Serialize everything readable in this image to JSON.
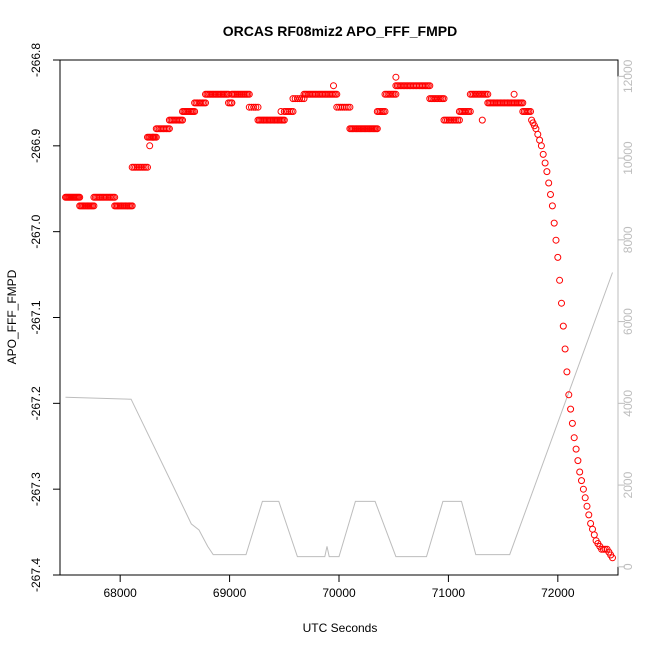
{
  "chart_data": {
    "type": "scatter",
    "title": "ORCAS RF08miz2 APO_FFF_FMPD",
    "xlabel": "UTC Seconds",
    "ylabel": "APO_FFF_FMPD",
    "xlim": [
      67450,
      72550
    ],
    "ylim": [
      -267.4,
      -266.8
    ],
    "y2lim": [
      -200,
      12400
    ],
    "x_ticks": [
      68000,
      69000,
      70000,
      71000,
      72000
    ],
    "x_tick_labels": [
      "68000",
      "69000",
      "70000",
      "71000",
      "72000"
    ],
    "y_ticks": [
      -267.4,
      -267.3,
      -267.2,
      -267.1,
      -267.0,
      -266.9,
      -266.8
    ],
    "y_tick_labels": [
      "-267.4",
      "-267.3",
      "-267.2",
      "-267.1",
      "-267.0",
      "-266.9",
      "-266.8"
    ],
    "y2_ticks": [
      0,
      2000,
      4000,
      6000,
      8000,
      10000,
      12000
    ],
    "y2_tick_labels": [
      "0",
      "2000",
      "4000",
      "6000",
      "8000",
      "10000",
      "12000"
    ],
    "grid": false,
    "colors": {
      "points": "#ff0000",
      "altitude": "#bdbdbd",
      "axis": "#000000",
      "right_axis": "#bdbdbd"
    },
    "series": [
      {
        "role": "points",
        "axis": "left",
        "marker": "open-circle",
        "segments": [
          [
            67500,
            67630,
            -266.96,
            14
          ],
          [
            67630,
            67760,
            -266.97,
            12
          ],
          [
            67760,
            67950,
            -266.96,
            16
          ],
          [
            67950,
            68110,
            -266.97,
            14
          ],
          [
            68110,
            68250,
            -266.925,
            10
          ],
          [
            68250,
            68330,
            -266.89,
            8
          ],
          [
            68330,
            68450,
            -266.88,
            10
          ],
          [
            68450,
            68570,
            -266.87,
            10
          ],
          [
            68570,
            68680,
            -266.86,
            10
          ],
          [
            68680,
            68780,
            -266.85,
            8
          ],
          [
            68780,
            68990,
            -266.84,
            18
          ],
          [
            68990,
            69020,
            -266.85,
            3
          ],
          [
            69020,
            69180,
            -266.84,
            14
          ],
          [
            69180,
            69260,
            -266.855,
            5
          ],
          [
            69260,
            69500,
            -266.87,
            20
          ],
          [
            69500,
            69580,
            -266.86,
            6
          ],
          [
            69580,
            69680,
            -266.845,
            6
          ],
          [
            69680,
            69980,
            -266.84,
            24
          ],
          [
            69980,
            70100,
            -266.855,
            8
          ],
          [
            70100,
            70350,
            -266.88,
            22
          ],
          [
            70350,
            70420,
            -266.86,
            6
          ],
          [
            70420,
            70520,
            -266.84,
            8
          ],
          [
            70520,
            70830,
            -266.83,
            24
          ],
          [
            70830,
            70960,
            -266.845,
            10
          ],
          [
            70960,
            71100,
            -266.87,
            10
          ],
          [
            71100,
            71200,
            -266.86,
            8
          ],
          [
            71200,
            71360,
            -266.84,
            12
          ],
          [
            71360,
            71680,
            -266.85,
            26
          ],
          [
            71680,
            71750,
            -266.86,
            6
          ]
        ],
        "special": [
          [
            68270,
            -266.9
          ],
          [
            68300,
            -266.89
          ],
          [
            69020,
            -266.85
          ],
          [
            69470,
            -266.86
          ],
          [
            69950,
            -266.83
          ],
          [
            70520,
            -266.82
          ],
          [
            71310,
            -266.87
          ],
          [
            71600,
            -266.84
          ]
        ],
        "tail": [
          [
            71760,
            -266.87
          ],
          [
            71800,
            -266.88
          ],
          [
            71850,
            -266.9
          ],
          [
            71900,
            -266.93
          ],
          [
            71950,
            -266.97
          ],
          [
            72000,
            -267.03
          ],
          [
            72050,
            -267.11
          ],
          [
            72100,
            -267.19
          ],
          [
            72150,
            -267.24
          ],
          [
            72200,
            -267.28
          ],
          [
            72250,
            -267.31
          ],
          [
            72300,
            -267.34
          ],
          [
            72350,
            -267.36
          ],
          [
            72400,
            -267.37
          ],
          [
            72450,
            -267.37
          ],
          [
            72500,
            -267.38
          ]
        ]
      },
      {
        "role": "altitude",
        "axis": "right",
        "x": [
          67500,
          68100,
          68480,
          68650,
          68720,
          68800,
          68850,
          69150,
          69300,
          69450,
          69620,
          69870,
          69890,
          69910,
          70000,
          70150,
          70330,
          70520,
          70800,
          70950,
          71120,
          71250,
          71560,
          72500
        ],
        "values": [
          4150,
          4100,
          2000,
          1050,
          900,
          500,
          300,
          300,
          1600,
          1600,
          250,
          250,
          500,
          250,
          250,
          1600,
          1600,
          250,
          250,
          1600,
          1600,
          300,
          300,
          7200
        ]
      }
    ]
  }
}
